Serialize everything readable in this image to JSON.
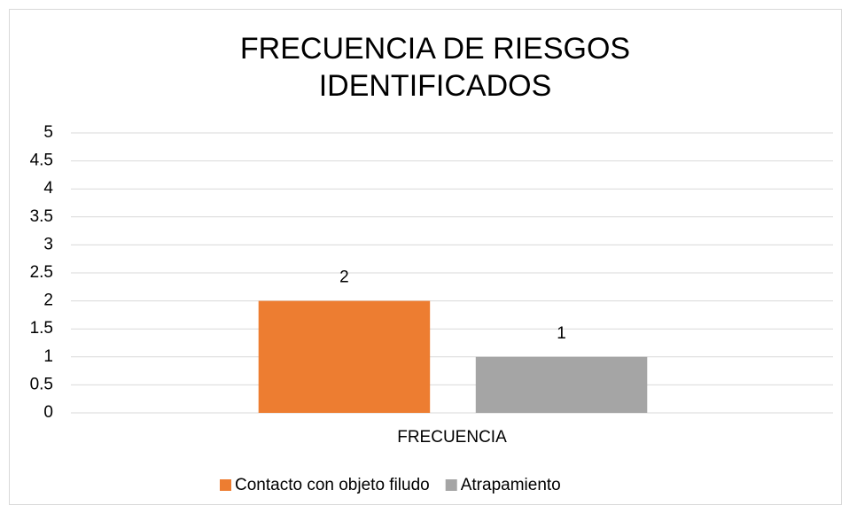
{
  "chart_data": {
    "type": "bar",
    "title": "FRECUENCIA DE RIESGOS IDENTIFICADOS",
    "categories": [
      "FRECUENCIA"
    ],
    "series": [
      {
        "name": "Contacto con objeto filudo",
        "color": "#ed7d31",
        "values": [
          2
        ]
      },
      {
        "name": "Atrapamiento",
        "color": "#a5a5a5",
        "values": [
          1
        ]
      }
    ],
    "ylim": [
      0,
      5
    ],
    "yticks": [
      0,
      0.5,
      1,
      1.5,
      2,
      2.5,
      3,
      3.5,
      4,
      4.5,
      5
    ],
    "grid": true,
    "legend": "bottom"
  }
}
